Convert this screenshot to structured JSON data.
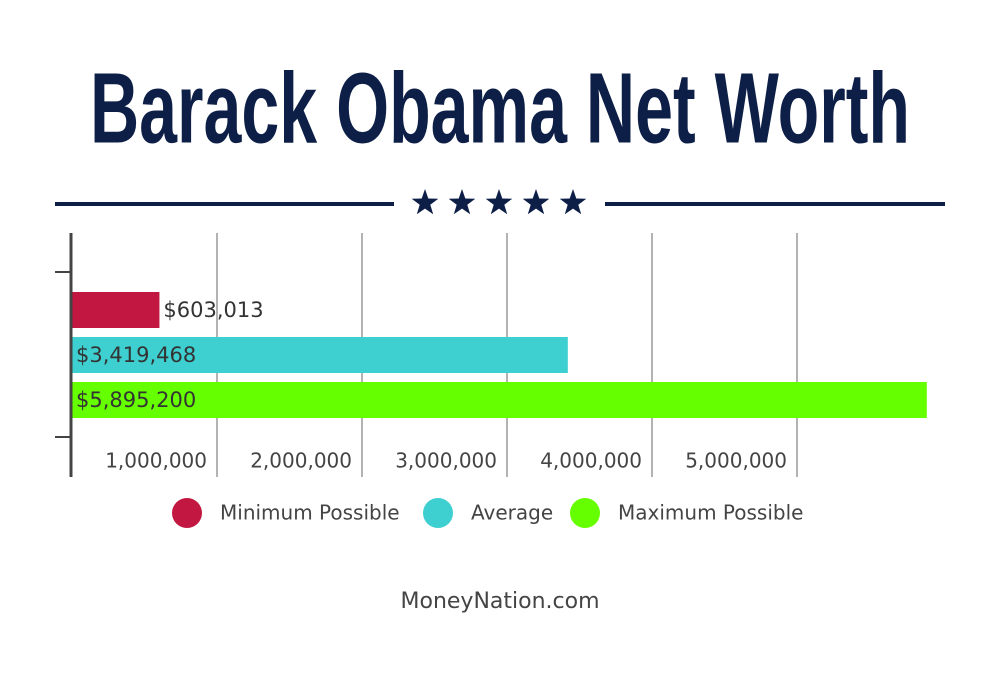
{
  "chart_data": {
    "type": "bar",
    "orientation": "horizontal",
    "title": "Barack Obama Net Worth",
    "series": [
      {
        "name": "Minimum Possible",
        "color": "#c21740",
        "values": [
          603013
        ],
        "value_labels": [
          "$603,013"
        ]
      },
      {
        "name": "Average",
        "color": "#3ecfd0",
        "values": [
          3419468
        ],
        "value_labels": [
          "$3,419,468"
        ]
      },
      {
        "name": "Maximum Possible",
        "color": "#66ff00",
        "values": [
          5895200
        ],
        "value_labels": [
          "$5,895,200"
        ]
      }
    ],
    "xlim": [
      0,
      6000000
    ],
    "xticks": [
      {
        "value": 1000000,
        "label": "1,000,000"
      },
      {
        "value": 2000000,
        "label": "2,000,000"
      },
      {
        "value": 3000000,
        "label": "3,000,000"
      },
      {
        "value": 4000000,
        "label": "4,000,000"
      },
      {
        "value": 5000000,
        "label": "5,000,000"
      }
    ],
    "grid": true,
    "source": "MoneyNation.com"
  }
}
